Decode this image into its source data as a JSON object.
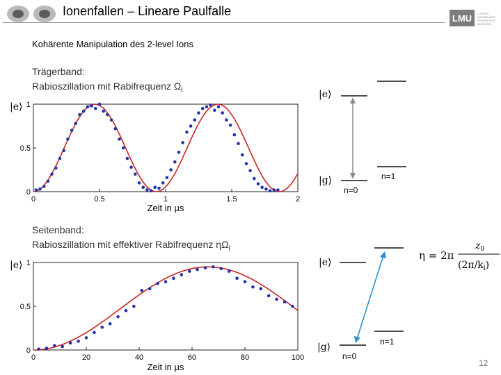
{
  "header": {
    "title": "Ionenfallen – Lineare Paulfalle",
    "logo_left": "atom-icons",
    "logo_right_text": "LMU",
    "logo_right_small": "LUDWIG-MAXIMILIANS-UNIVERSITÄT MÜNCHEN"
  },
  "subtitle": "Kohärente Manipulation des 2-level Ions",
  "plot_top": {
    "heading_line1": "Trägerband:",
    "heading_line2": "Rabioszillation mit Rabifrequenz Ω",
    "heading_sub": "l",
    "ylabel": "|e⟩",
    "xlabel": "Zeit in µs",
    "y_ticks": [
      "0",
      "0.5",
      "1"
    ],
    "x_ticks": [
      "0",
      "0.5",
      "1",
      "1.5",
      "2"
    ]
  },
  "plot_bottom": {
    "heading_line1": "Seitenband:",
    "heading_line2": "Rabioszillation mit effektiver Rabifrequenz ηΩ",
    "heading_sub": "l",
    "ylabel": "|e⟩",
    "xlabel": "Zeit in µs",
    "y_ticks": [
      "0",
      "0.5",
      "1"
    ],
    "x_ticks": [
      "0",
      "20",
      "40",
      "60",
      "80",
      "100"
    ]
  },
  "levels_top": {
    "e_label": "|e⟩",
    "g_label": "|g⟩",
    "n0": "n=0",
    "n1": "n=1"
  },
  "levels_bottom": {
    "e_label": "|e⟩",
    "g_label": "|g⟩",
    "n0": "n=0",
    "n1": "n=1"
  },
  "formula": {
    "lhs": "η = 2π",
    "numerator": "z",
    "numerator_sub": "0",
    "denominator": "(2π/k",
    "denominator_sub": "l",
    "denominator_end": ")"
  },
  "page_number": "12",
  "colors": {
    "fit_line": "#cc2222",
    "data_points": "#2233aa",
    "arrow_gray": "#888888",
    "arrow_blue": "#2a8fd0"
  },
  "chart_data": [
    {
      "type": "scatter",
      "title": "Trägerband",
      "xlabel": "Zeit in µs",
      "ylabel": "|e⟩",
      "xlim": [
        0,
        2
      ],
      "ylim": [
        0,
        1
      ],
      "fit": "sin^2 Rabi oscillation, period ≈ 0.93 µs",
      "x": [
        0.02,
        0.05,
        0.08,
        0.11,
        0.14,
        0.17,
        0.2,
        0.23,
        0.26,
        0.29,
        0.32,
        0.35,
        0.38,
        0.41,
        0.44,
        0.47,
        0.5,
        0.53,
        0.56,
        0.59,
        0.62,
        0.65,
        0.68,
        0.71,
        0.74,
        0.77,
        0.8,
        0.83,
        0.86,
        0.89,
        0.92,
        0.95,
        0.98,
        1.01,
        1.04,
        1.07,
        1.1,
        1.13,
        1.16,
        1.19,
        1.22,
        1.25,
        1.28,
        1.31,
        1.34,
        1.37,
        1.4,
        1.43,
        1.46,
        1.49,
        1.52,
        1.55,
        1.58,
        1.61,
        1.64,
        1.67,
        1.7,
        1.73,
        1.76,
        1.79,
        1.82,
        1.85
      ],
      "y": [
        0.02,
        0.03,
        0.06,
        0.12,
        0.2,
        0.27,
        0.38,
        0.47,
        0.6,
        0.7,
        0.78,
        0.88,
        0.92,
        0.97,
        0.98,
        0.95,
        1.0,
        0.92,
        0.88,
        0.82,
        0.72,
        0.6,
        0.5,
        0.38,
        0.28,
        0.2,
        0.1,
        0.05,
        0.02,
        0.01,
        0.05,
        0.04,
        0.1,
        0.16,
        0.25,
        0.34,
        0.45,
        0.56,
        0.68,
        0.75,
        0.82,
        0.9,
        0.95,
        0.97,
        0.99,
        0.93,
        0.97,
        0.9,
        0.82,
        0.76,
        0.65,
        0.55,
        0.42,
        0.32,
        0.24,
        0.15,
        0.09,
        0.05,
        0.03,
        0.01,
        0.02,
        0.02
      ]
    },
    {
      "type": "scatter",
      "title": "Seitenband",
      "xlabel": "Zeit in µs",
      "ylabel": "|e⟩",
      "xlim": [
        0,
        100
      ],
      "ylim": [
        0,
        1
      ],
      "fit": "slow Rabi oscillation, maximum near 66 µs",
      "x": [
        2,
        5,
        8,
        11,
        14,
        17,
        20,
        23,
        26,
        29,
        32,
        35,
        38,
        41,
        44,
        47,
        50,
        53,
        56,
        59,
        62,
        65,
        68,
        71,
        74,
        77,
        80,
        83,
        86,
        89,
        92,
        95,
        98
      ],
      "y": [
        0.01,
        0.02,
        0.05,
        0.04,
        0.08,
        0.1,
        0.14,
        0.2,
        0.26,
        0.3,
        0.38,
        0.45,
        0.5,
        0.68,
        0.7,
        0.76,
        0.78,
        0.82,
        0.86,
        0.9,
        0.92,
        0.94,
        0.95,
        0.93,
        0.9,
        0.82,
        0.78,
        0.72,
        0.7,
        0.62,
        0.58,
        0.55,
        0.5
      ]
    }
  ]
}
